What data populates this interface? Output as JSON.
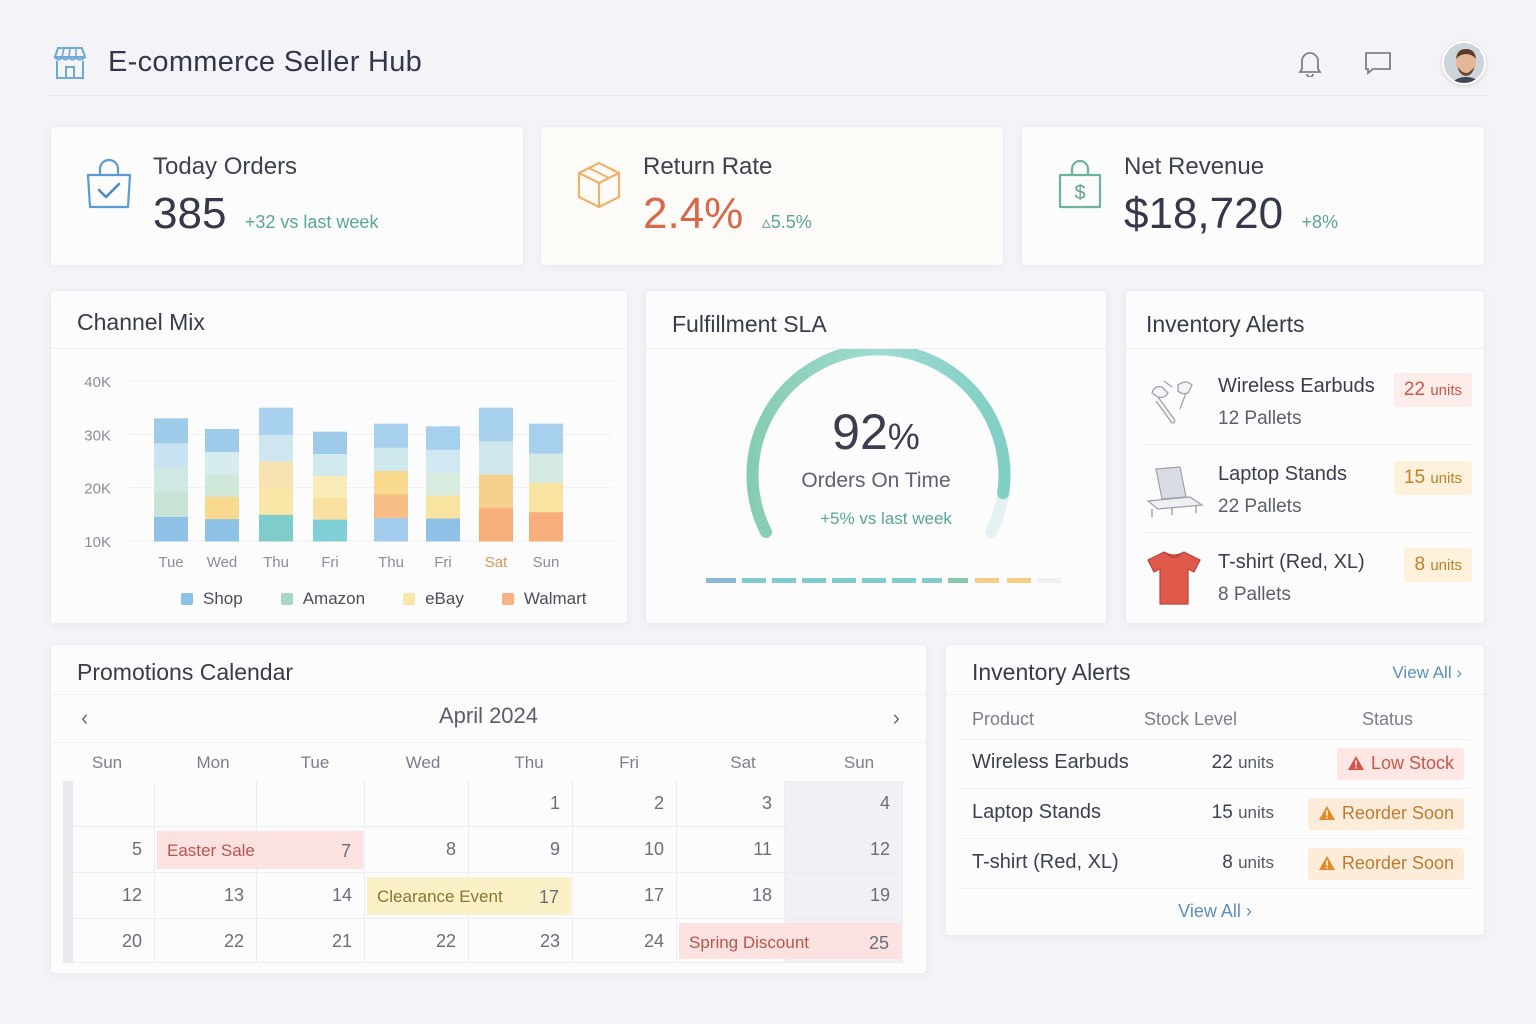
{
  "header": {
    "title": "E-commerce Seller Hub"
  },
  "kpis": [
    {
      "label": "Today Orders",
      "value": "385",
      "delta": "+32 vs last week",
      "color": "#3d4150",
      "delta_color": "#5aa596"
    },
    {
      "label": "Return Rate",
      "value": "2.4%",
      "delta": "▵5.5%",
      "color": "#d9684a",
      "delta_color": "#5aa596"
    },
    {
      "label": "Net Revenue",
      "value": "$18,720",
      "delta": "+8%",
      "color": "#34384a",
      "delta_color": "#5aa596"
    }
  ],
  "channel_mix": {
    "title": "Channel Mix",
    "legend": [
      {
        "label": "Shop",
        "color": "#8dc2e6"
      },
      {
        "label": "Amazon",
        "color": "#a4d8c2"
      },
      {
        "label": "eBay",
        "color": "#f9e7a8"
      },
      {
        "label": "Walmart",
        "color": "#f7b381"
      }
    ]
  },
  "chart_data": {
    "type": "bar",
    "title": "Channel Mix",
    "categories": [
      "Tue",
      "Wed",
      "Thu",
      "Fri",
      "Thu",
      "Fri",
      "Sat",
      "Sun"
    ],
    "ylim": [
      10000,
      40000
    ],
    "yticks": [
      "40K",
      "30K",
      "20K",
      "10K"
    ],
    "yticks_values": [
      40000,
      30000,
      20000,
      10000
    ],
    "grid": true,
    "legend_position": "bottom",
    "series": [
      {
        "name": "Shop",
        "color": "#8dc2e6",
        "values": [
          3,
          3,
          3,
          3,
          3,
          3,
          3,
          3
        ]
      },
      {
        "name": "Amazon",
        "color": "#a4d8c2",
        "values": [
          3,
          3,
          2,
          2,
          2,
          2,
          2,
          2
        ]
      },
      {
        "name": "eBay",
        "color": "#f9e7a8",
        "values": [
          2,
          2,
          2,
          2,
          2,
          2,
          2,
          2
        ]
      },
      {
        "name": "Walmart",
        "color": "#f7b381",
        "values": [
          0,
          0,
          0,
          0,
          2,
          0,
          3,
          3
        ]
      }
    ],
    "stack_colors": [
      [
        "#8dc2e6",
        "#c6e3d5",
        "#d0e8e4",
        "#c9e3f2",
        "#9fcbea"
      ],
      [
        "#8dc2e6",
        "#f8d98e",
        "#cfe8da",
        "#d7ecef",
        "#9fcbea"
      ],
      [
        "#7ecdcb",
        "#f9e7a8",
        "#f6e3b1",
        "#cde6f0",
        "#a7d1ee"
      ],
      [
        "#80cfd6",
        "#f8e0a0",
        "#f9ecb8",
        "#cfe9ed",
        "#9fcbea"
      ],
      [
        "#a3cbec",
        "#f8bd86",
        "#f8d98e",
        "#cde7ec",
        "#a7d0ee"
      ],
      [
        "#8dc2e6",
        "#f9e3a0",
        "#d7ebdf",
        "#d1e7f2",
        "#a7d0ee"
      ],
      [
        "#f7ae7a",
        "#f8d08e",
        "#cfe6ec",
        "#a7d0ee"
      ],
      [
        "#f7ae7a",
        "#f9e3a0",
        "#d3e9e2",
        "#a7d0ee"
      ]
    ],
    "stack_totals": [
      33000,
      31000,
      35000,
      30500,
      32000,
      31500,
      35000,
      32000
    ]
  },
  "sla": {
    "title": "Fulfillment SLA",
    "value": "92",
    "unit": "%",
    "label": "Orders On Time",
    "delta": "+5% vs last week",
    "gauge_fraction": 0.92
  },
  "inventory_alerts": {
    "title": "Inventory Alerts",
    "items": [
      {
        "name": "Wireless Earbuds",
        "sub": "12 Pallets",
        "qty": "22",
        "unit": "units",
        "bg": "#fdecea",
        "color": "#c9584a",
        "icon": "earbuds-icon"
      },
      {
        "name": "Laptop Stands",
        "sub": "22 Pallets",
        "qty": "15",
        "unit": "units",
        "bg": "#fdf1dc",
        "color": "#c0802c",
        "icon": "laptop-stand-icon"
      },
      {
        "name": "T-shirt (Red, XL)",
        "sub": "8 Pallets",
        "qty": "8",
        "unit": "units",
        "bg": "#fdf1dc",
        "color": "#c0802c",
        "icon": "tshirt-icon"
      }
    ]
  },
  "promotions": {
    "title": "Promotions Calendar",
    "month": "April 2024",
    "days_of_week": [
      "Sun",
      "Mon",
      "Tue",
      "Wed",
      "Thu",
      "Fri",
      "Sat",
      "Sun"
    ],
    "rows": [
      [
        "",
        "",
        "",
        "",
        "1",
        "2",
        "3",
        "4"
      ],
      [
        "5",
        "7",
        "",
        "8",
        "9",
        "10",
        "11",
        "12"
      ],
      [
        "12",
        "13",
        "14",
        "17",
        "",
        "17",
        "18",
        "19"
      ],
      [
        "20",
        "22",
        "21",
        "22",
        "23",
        "24",
        "25",
        ""
      ]
    ],
    "events": [
      {
        "label": "Easter Sale",
        "day": "7",
        "bg": "#fbe2e0",
        "color": "#b8564c"
      },
      {
        "label": "Clearance Event",
        "day": "17",
        "bg": "#fbf1c6",
        "color": "#8a7434"
      },
      {
        "label": "Spring Discount",
        "day": "25",
        "bg": "#fbe2e0",
        "color": "#b8564c"
      }
    ]
  },
  "inventory_table": {
    "title": "Inventory Alerts",
    "view_all_top": "View All",
    "view_all_bottom": "View All",
    "columns": [
      "Product",
      "Stock Level",
      "Status"
    ],
    "rows": [
      {
        "product": "Wireless Earbuds",
        "qty": "22",
        "unit": "units",
        "status": "Low Stock",
        "bg": "#fde6e3",
        "color": "#c9584a",
        "icon_color": "#d9534a"
      },
      {
        "product": "Laptop Stands",
        "qty": "15",
        "unit": "units",
        "status": "Reorder Soon",
        "bg": "#fdecd9",
        "color": "#c07a30",
        "icon_color": "#e08a2a"
      },
      {
        "product": "T-shirt (Red, XL)",
        "qty": "8",
        "unit": "units",
        "status": "Reorder Soon",
        "bg": "#fdecd9",
        "color": "#c07a30",
        "icon_color": "#e08a2a"
      }
    ]
  }
}
